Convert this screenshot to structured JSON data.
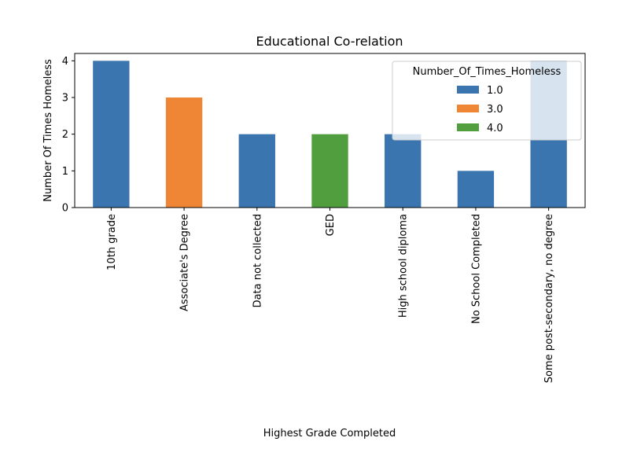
{
  "chart_data": {
    "type": "bar",
    "stacked": true,
    "title": "Educational Co-relation",
    "xlabel": "Highest Grade Completed",
    "ylabel": "Number Of Times Homeless",
    "ylim": [
      0,
      4.2
    ],
    "yticks": [
      "0",
      "1",
      "2",
      "3",
      "4"
    ],
    "grid": false,
    "categories": [
      "10th grade",
      "Associate's Degree",
      "Data not collected",
      "GED",
      "High school diploma",
      "No School Completed",
      "Some post-secondary, no degree"
    ],
    "legend": {
      "title": "Number_Of_Times_Homeless",
      "placement": "upper right"
    },
    "series": [
      {
        "name": "1.0",
        "color": "#3a75b0",
        "values": [
          4,
          0,
          2,
          0,
          2,
          1,
          4
        ]
      },
      {
        "name": "3.0",
        "color": "#ef8636",
        "values": [
          0,
          3,
          0,
          0,
          0,
          0,
          0
        ]
      },
      {
        "name": "4.0",
        "color": "#519e3e",
        "values": [
          0,
          0,
          0,
          2,
          0,
          0,
          0
        ]
      }
    ]
  }
}
